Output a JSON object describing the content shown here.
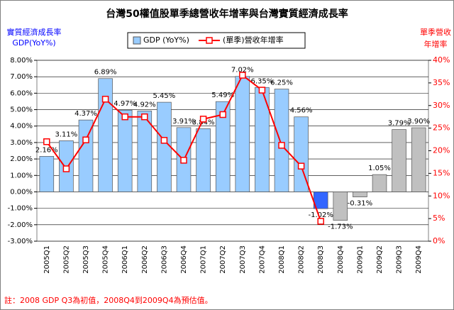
{
  "chart_data": {
    "type": "bar",
    "title": "台灣50權值股單季總營收年增率與台灣實質經濟成長率",
    "y_label": [
      "實質經濟成長率",
      "GDP(YoY%)"
    ],
    "y2_label": [
      "單季營收",
      "年增率"
    ],
    "note": "註：2008 GDP Q3為初值，2008Q4到2009Q4為預估值。",
    "categories": [
      "2005Q1",
      "2005Q2",
      "2005Q3",
      "2005Q4",
      "2006Q1",
      "2006Q2",
      "2006Q3",
      "2006Q4",
      "2007Q1",
      "2007Q2",
      "2007Q3",
      "2007Q4",
      "2008Q1",
      "2008Q2",
      "2008Q3",
      "2008Q4",
      "2009Q1",
      "2009Q2",
      "2009Q3",
      "2009Q4"
    ],
    "series": [
      {
        "name": "GDP (YoY%)",
        "type": "bar",
        "colors": [
          "#99ccff",
          "#99ccff",
          "#99ccff",
          "#99ccff",
          "#99ccff",
          "#99ccff",
          "#99ccff",
          "#99ccff",
          "#99ccff",
          "#99ccff",
          "#99ccff",
          "#99ccff",
          "#99ccff",
          "#99ccff",
          "#3366ff",
          "#c0c0c0",
          "#c0c0c0",
          "#c0c0c0",
          "#c0c0c0",
          "#c0c0c0"
        ],
        "values": [
          2.16,
          3.11,
          4.37,
          6.89,
          4.97,
          4.92,
          5.45,
          3.91,
          3.84,
          5.49,
          7.02,
          6.35,
          6.25,
          4.56,
          -1.02,
          -1.73,
          -0.31,
          1.05,
          3.79,
          3.9
        ],
        "value_labels": [
          "2.16%",
          "3.11%",
          "4.37%",
          "6.89%",
          "4.97%",
          "4.92%",
          "5.45%",
          "3.91%",
          "3.84%",
          "5.49%",
          "7.02%",
          "6.35%",
          "6.25%",
          "4.56%",
          "-1.02%",
          "-1.73%",
          "-0.31%",
          "1.05%",
          "3.79%",
          "3.90%"
        ]
      },
      {
        "name": "(單季)營收年增率",
        "type": "line",
        "axis": "y2",
        "color": "#ff0000",
        "values": [
          22,
          16,
          22.4,
          31.4,
          27.5,
          27.5,
          22.3,
          17.9,
          27,
          28,
          36.7,
          33.4,
          21.2,
          16.6,
          4.4,
          null,
          null,
          null,
          null,
          null
        ]
      }
    ],
    "ylim": [
      -3,
      8
    ],
    "yticks": [
      {
        "value": -3,
        "label": "-3.00%"
      },
      {
        "value": -2,
        "label": "-2.00%"
      },
      {
        "value": -1,
        "label": "-1.00%"
      },
      {
        "value": 0,
        "label": "0.00%"
      },
      {
        "value": 1,
        "label": "1.00%"
      },
      {
        "value": 2,
        "label": "2.00%"
      },
      {
        "value": 3,
        "label": "3.00%"
      },
      {
        "value": 4,
        "label": "4.00%"
      },
      {
        "value": 5,
        "label": "5.00%"
      },
      {
        "value": 6,
        "label": "6.00%"
      },
      {
        "value": 7,
        "label": "7.00%"
      },
      {
        "value": 8,
        "label": "8.00%"
      }
    ],
    "y2lim": [
      0,
      40
    ],
    "y2ticks": [
      {
        "value": 0,
        "label": "0%"
      },
      {
        "value": 5,
        "label": "5%"
      },
      {
        "value": 10,
        "label": "10%"
      },
      {
        "value": 15,
        "label": "15%"
      },
      {
        "value": 20,
        "label": "20%"
      },
      {
        "value": 25,
        "label": "25%"
      },
      {
        "value": 30,
        "label": "30%"
      },
      {
        "value": 35,
        "label": "35%"
      },
      {
        "value": 40,
        "label": "40%"
      }
    ],
    "grid": true
  }
}
